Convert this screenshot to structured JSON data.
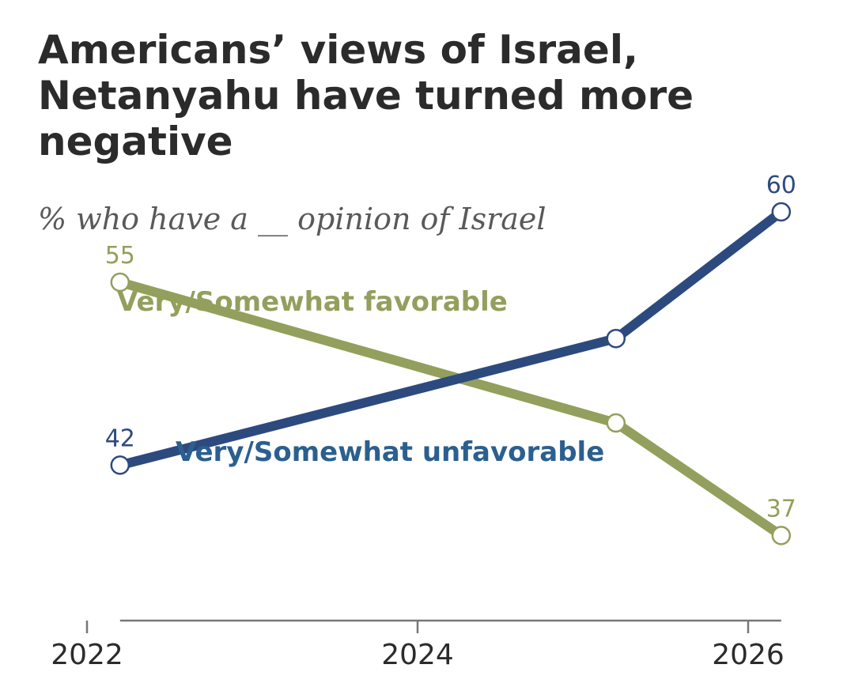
{
  "title": "Americans’ views of Israel, Netanyahu have turned more negative",
  "subtitle": "% who have a __ opinion of Israel",
  "colors": {
    "favorable": "#939f5c",
    "unfavorable": "#2d4a7e",
    "unfavorable_label": "#2b5f8f",
    "axis": "#777777"
  },
  "chart_data": {
    "type": "line",
    "title": "Americans’ views of Israel, Netanyahu have turned more negative",
    "subtitle": "% who have a __ opinion of Israel",
    "xlabel": "",
    "ylabel": "",
    "x_ticks": [
      "2022",
      "2024",
      "2026"
    ],
    "xlim": [
      2022,
      2026
    ],
    "ylim": [
      20,
      70
    ],
    "grid": false,
    "series": [
      {
        "name": "Very/Somewhat favorable",
        "color": "#939f5c",
        "x": [
          2022.2,
          2025.2,
          2026.2
        ],
        "y": [
          55,
          45,
          37
        ],
        "labels": [
          "55",
          "",
          "37"
        ]
      },
      {
        "name": "Very/Somewhat unfavorable",
        "color": "#2d4a7e",
        "x": [
          2022.2,
          2025.2,
          2026.2
        ],
        "y": [
          42,
          51,
          60
        ],
        "labels": [
          "42",
          "",
          "60"
        ]
      }
    ]
  }
}
